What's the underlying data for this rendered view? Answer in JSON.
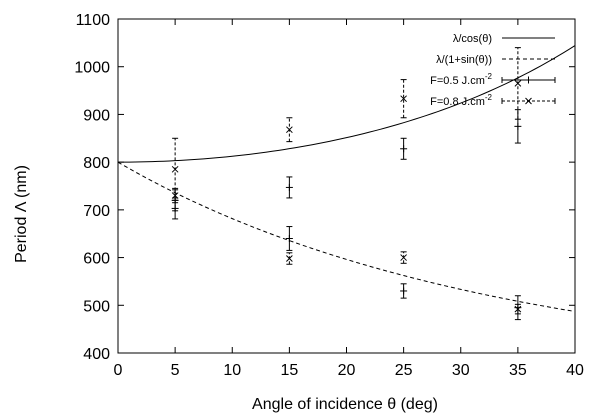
{
  "chart_data": {
    "type": "line",
    "title": "",
    "xlabel": "Angle of incidence θ (deg)",
    "ylabel": "Period Λ (nm)",
    "xlim": [
      0,
      40
    ],
    "ylim": [
      400,
      1100
    ],
    "xticks": [
      0,
      5,
      10,
      15,
      20,
      25,
      30,
      35,
      40
    ],
    "yticks": [
      400,
      500,
      600,
      700,
      800,
      900,
      1000,
      1100
    ],
    "grid": false,
    "legend_position": "top-right",
    "curves": [
      {
        "name": "λ/cos(θ)",
        "expression": "800/cos(θ)",
        "style": "solid",
        "x_range": [
          0,
          40
        ]
      },
      {
        "name": "λ/(1+sin(θ))",
        "expression": "800/(1+sin(θ))",
        "style": "dashed",
        "x_range": [
          0,
          40
        ]
      }
    ],
    "series": [
      {
        "name": "F=0.5 J.cm",
        "name_sup": "-2",
        "style": "solid",
        "marker": "+",
        "points": [
          {
            "x": 5,
            "y": 703,
            "yerr": 22
          },
          {
            "x": 5,
            "y": 720,
            "yerr": 22
          },
          {
            "x": 15,
            "y": 747,
            "yerr": 22
          },
          {
            "x": 15,
            "y": 640,
            "yerr": 25
          },
          {
            "x": 25,
            "y": 828,
            "yerr": 22
          },
          {
            "x": 25,
            "y": 530,
            "yerr": 15
          },
          {
            "x": 35,
            "y": 875,
            "yerr": 35
          },
          {
            "x": 35,
            "y": 495,
            "yerr": 25
          }
        ]
      },
      {
        "name": "F=0.8 J.cm",
        "name_sup": "-2",
        "style": "dashed",
        "marker": "x",
        "points": [
          {
            "x": 5,
            "y": 785,
            "yerr": 65
          },
          {
            "x": 5,
            "y": 730,
            "yerr": 15
          },
          {
            "x": 15,
            "y": 868,
            "yerr": 25
          },
          {
            "x": 15,
            "y": 598,
            "yerr": 12
          },
          {
            "x": 25,
            "y": 933,
            "yerr": 40
          },
          {
            "x": 25,
            "y": 600,
            "yerr": 12
          },
          {
            "x": 35,
            "y": 965,
            "yerr": 75
          },
          {
            "x": 35,
            "y": 492,
            "yerr": 10
          }
        ]
      }
    ]
  }
}
